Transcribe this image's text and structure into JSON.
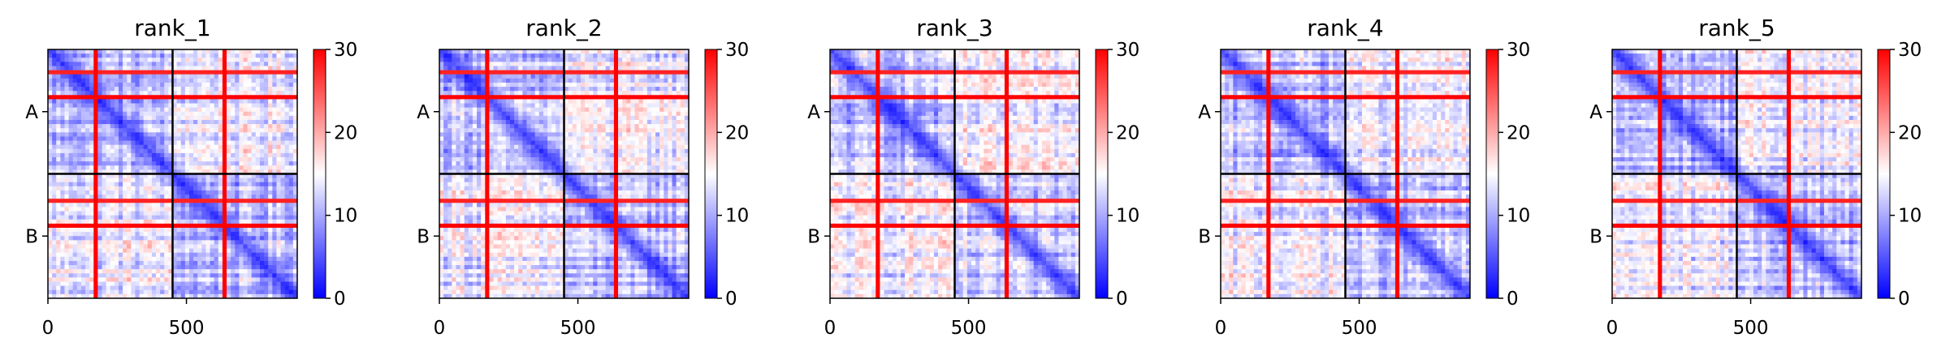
{
  "chart_data": [
    {
      "type": "heatmap",
      "title": "rank_1",
      "xlim": [
        0,
        900
      ],
      "x_ticks": [
        0,
        500
      ],
      "y_ticks": [
        "A",
        "B"
      ],
      "chain_break": 450,
      "colorbar": {
        "min": 0,
        "max": 30,
        "ticks": [
          0,
          10,
          20,
          30
        ],
        "cmap": [
          "#0000ff",
          "#ffffff",
          "#ff0000"
        ]
      },
      "high_error_bands": [
        {
          "center": 170,
          "value": 30
        },
        {
          "center": 630,
          "value": 30
        }
      ]
    },
    {
      "type": "heatmap",
      "title": "rank_2",
      "xlim": [
        0,
        900
      ],
      "x_ticks": [
        0,
        500
      ],
      "y_ticks": [
        "A",
        "B"
      ],
      "chain_break": 450,
      "colorbar": {
        "min": 0,
        "max": 30,
        "ticks": [
          0,
          10,
          20,
          30
        ],
        "cmap": [
          "#0000ff",
          "#ffffff",
          "#ff0000"
        ]
      },
      "high_error_bands": [
        {
          "center": 170,
          "value": 30
        },
        {
          "center": 630,
          "value": 30
        }
      ]
    },
    {
      "type": "heatmap",
      "title": "rank_3",
      "xlim": [
        0,
        900
      ],
      "x_ticks": [
        0,
        500
      ],
      "y_ticks": [
        "A",
        "B"
      ],
      "chain_break": 450,
      "colorbar": {
        "min": 0,
        "max": 30,
        "ticks": [
          0,
          10,
          20,
          30
        ],
        "cmap": [
          "#0000ff",
          "#ffffff",
          "#ff0000"
        ]
      },
      "high_error_bands": [
        {
          "center": 170,
          "value": 30
        },
        {
          "center": 630,
          "value": 30
        }
      ]
    },
    {
      "type": "heatmap",
      "title": "rank_4",
      "xlim": [
        0,
        900
      ],
      "x_ticks": [
        0,
        500
      ],
      "y_ticks": [
        "A",
        "B"
      ],
      "chain_break": 450,
      "colorbar": {
        "min": 0,
        "max": 30,
        "ticks": [
          0,
          10,
          20,
          30
        ],
        "cmap": [
          "#0000ff",
          "#ffffff",
          "#ff0000"
        ]
      },
      "high_error_bands": [
        {
          "center": 170,
          "value": 30
        },
        {
          "center": 630,
          "value": 30
        }
      ]
    },
    {
      "type": "heatmap",
      "title": "rank_5",
      "xlim": [
        0,
        900
      ],
      "x_ticks": [
        0,
        500
      ],
      "y_ticks": [
        "A",
        "B"
      ],
      "chain_break": 450,
      "colorbar": {
        "min": 0,
        "max": 30,
        "ticks": [
          0,
          10,
          20,
          30
        ],
        "cmap": [
          "#0000ff",
          "#ffffff",
          "#ff0000"
        ]
      },
      "high_error_bands": [
        {
          "center": 170,
          "value": 30
        },
        {
          "center": 630,
          "value": 30
        }
      ]
    }
  ]
}
